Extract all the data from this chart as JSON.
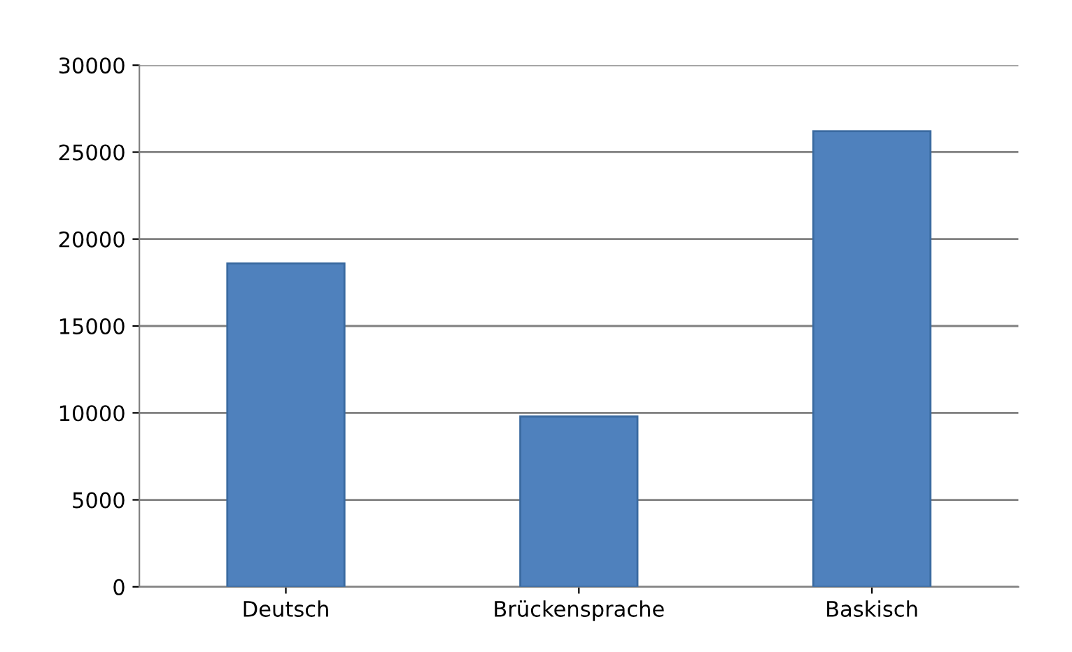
{
  "chart_data": {
    "type": "bar",
    "categories": [
      "Deutsch",
      "Brückensprache",
      "Baskisch"
    ],
    "values": [
      18600,
      9800,
      26200
    ],
    "color": "#4f81bd",
    "ylim": [
      0,
      30000
    ],
    "yticks": [
      0,
      5000,
      10000,
      15000,
      20000,
      25000,
      30000
    ],
    "grid": "y",
    "legend": false
  }
}
